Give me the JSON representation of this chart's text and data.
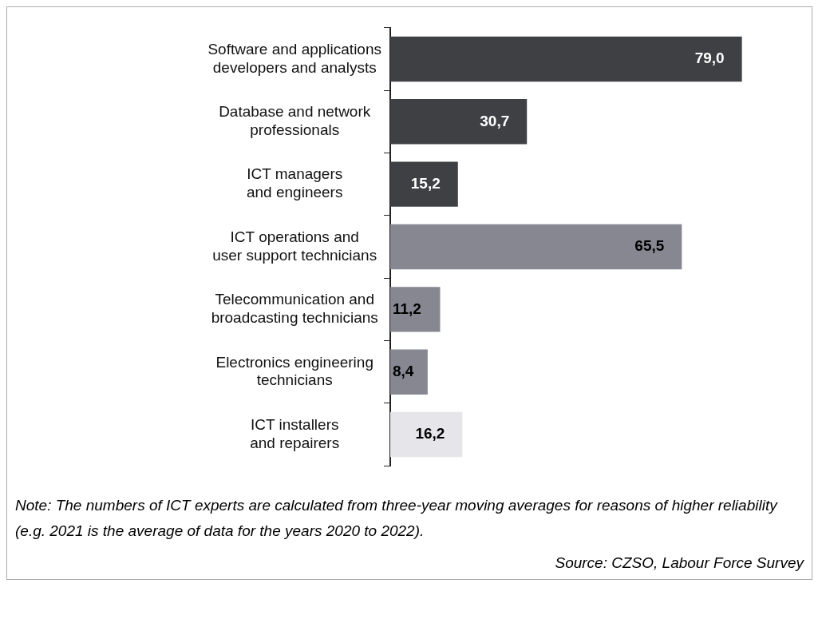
{
  "chart_data": {
    "type": "bar",
    "orientation": "horizontal",
    "categories": [
      "Software and applications\ndevelopers and analysts",
      "Database and network\nprofessionals",
      "ICT managers\nand engineers",
      "ICT operations and\nuser support technicians",
      "Telecommunication and\nbroadcasting technicians",
      "Electronics engineering\ntechnicians",
      "ICT installers\nand repairers"
    ],
    "values": [
      79.0,
      30.7,
      15.2,
      65.5,
      11.2,
      8.4,
      16.2
    ],
    "value_labels": [
      "79,0",
      "30,7",
      "15,2",
      "65,5",
      "11,2",
      "8,4",
      "16,2"
    ],
    "colors": [
      "#3f4044",
      "#3f4044",
      "#3f4044",
      "#868791",
      "#868791",
      "#868791",
      "#e6e6ea"
    ],
    "annotations": [
      "Note: The numbers of ICT experts are calculated from three-year moving averages for reasons of higher reliability (e.g. 2021 is the average of data for the years 2020 to 2022).",
      "Source: CZSO, Labour Force Survey"
    ],
    "legend": false
  }
}
